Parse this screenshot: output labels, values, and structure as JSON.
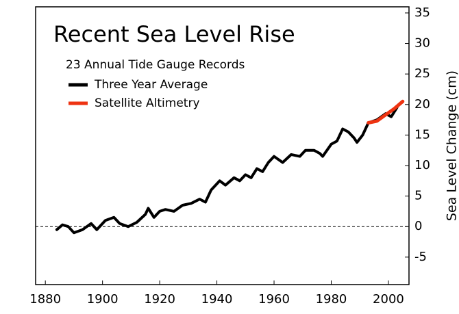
{
  "chart_data": {
    "type": "line",
    "title": "Recent Sea Level Rise",
    "subtitle": "23 Annual Tide Gauge Records",
    "y_label": "Sea Level Change (cm)",
    "xlim": [
      1876.6,
      2007.2
    ],
    "xticks": [
      1880,
      1900,
      1920,
      1940,
      1960,
      1980,
      2000
    ],
    "ylim": [
      -9.5,
      36
    ],
    "yticks": [
      -5,
      0,
      5,
      10,
      15,
      20,
      25,
      30,
      35
    ],
    "zero_line": true,
    "series": [
      {
        "name": "Three Year Average",
        "color": "#000000",
        "x": [
          1884,
          1886,
          1888,
          1890,
          1893,
          1896,
          1898,
          1901,
          1904,
          1906,
          1909,
          1912,
          1915,
          1916,
          1918,
          1920,
          1922,
          1925,
          1928,
          1931,
          1934,
          1936,
          1938,
          1941,
          1943,
          1946,
          1948,
          1950,
          1952,
          1954,
          1956,
          1958,
          1960,
          1963,
          1966,
          1969,
          1971,
          1974,
          1976,
          1977,
          1980,
          1982,
          1984,
          1986,
          1988,
          1989,
          1991,
          1993,
          1996,
          1999,
          2001,
          2003
        ],
        "values": [
          -0.5,
          0.3,
          0,
          -1,
          -0.5,
          0.5,
          -0.5,
          1,
          1.5,
          0.5,
          0,
          0.7,
          2,
          3,
          1.5,
          2.5,
          2.8,
          2.5,
          3.5,
          3.8,
          4.5,
          4,
          6,
          7.5,
          6.8,
          8,
          7.5,
          8.5,
          8,
          9.5,
          9,
          10.5,
          11.5,
          10.5,
          11.8,
          11.5,
          12.5,
          12.5,
          12,
          11.5,
          13.5,
          14,
          16,
          15.5,
          14.5,
          13.8,
          15,
          17,
          17.5,
          18.5,
          18,
          19.5
        ]
      },
      {
        "name": "Satellite Altimetry",
        "color": "#ee3311",
        "x": [
          1993,
          1996,
          1999,
          2002,
          2005
        ],
        "values": [
          17,
          17.3,
          18.3,
          19.3,
          20.5
        ]
      }
    ]
  }
}
